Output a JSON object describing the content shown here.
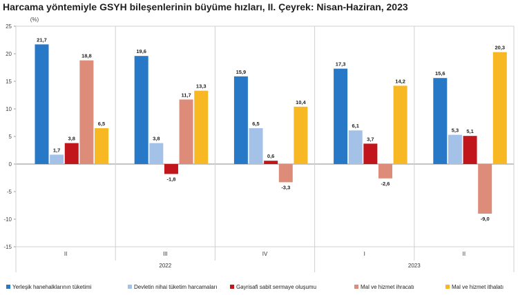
{
  "chart_data": {
    "type": "bar",
    "title": "Harcama yöntemiyle GSYH bileşenlerinin büyüme hızları, II. Çeyrek: Nisan-Haziran, 2023",
    "ylabel": "(%)",
    "ylim": [
      -15,
      25
    ],
    "yticks": [
      -15,
      -10,
      -5,
      0,
      5,
      10,
      15,
      20,
      25
    ],
    "grid": false,
    "legend_position": "bottom",
    "categories": [
      "II",
      "III",
      "IV",
      "I",
      "II"
    ],
    "years": [
      {
        "label": "2022",
        "span": [
          0,
          2
        ]
      },
      {
        "label": "2023",
        "span": [
          3,
          4
        ]
      }
    ],
    "series": [
      {
        "name": "Yerleşik hanehalklarının tüketimi",
        "color": "#2878c8",
        "values": [
          21.7,
          19.6,
          15.9,
          17.3,
          15.6
        ],
        "labels": [
          "21,7",
          "19,6",
          "15,9",
          "17,3",
          "15,6"
        ]
      },
      {
        "name": "Devletin nihai tüketim harcamaları",
        "color": "#a4c2e8",
        "values": [
          1.7,
          3.8,
          6.5,
          6.1,
          5.3
        ],
        "labels": [
          "1,7",
          "3,8",
          "6,5",
          "6,1",
          "5,3"
        ]
      },
      {
        "name": "Gayrisafi sabit sermaye oluşumu",
        "color": "#c0161c",
        "values": [
          3.8,
          -1.8,
          0.6,
          3.7,
          5.1
        ],
        "labels": [
          "3,8",
          "-1,8",
          "0,6",
          "3,7",
          "5,1"
        ]
      },
      {
        "name": "Mal ve hizmet ihracatı",
        "color": "#dc8c78",
        "values": [
          18.8,
          11.7,
          -3.3,
          -2.6,
          -9.0
        ],
        "labels": [
          "18,8",
          "11,7",
          "-3,3",
          "-2,6",
          "-9,0"
        ]
      },
      {
        "name": "Mal ve hizmet ithalatı",
        "color": "#f8b823",
        "values": [
          6.5,
          13.3,
          10.4,
          14.2,
          20.3
        ],
        "labels": [
          "6,5",
          "13,3",
          "10,4",
          "14,2",
          "20,3"
        ]
      }
    ]
  }
}
